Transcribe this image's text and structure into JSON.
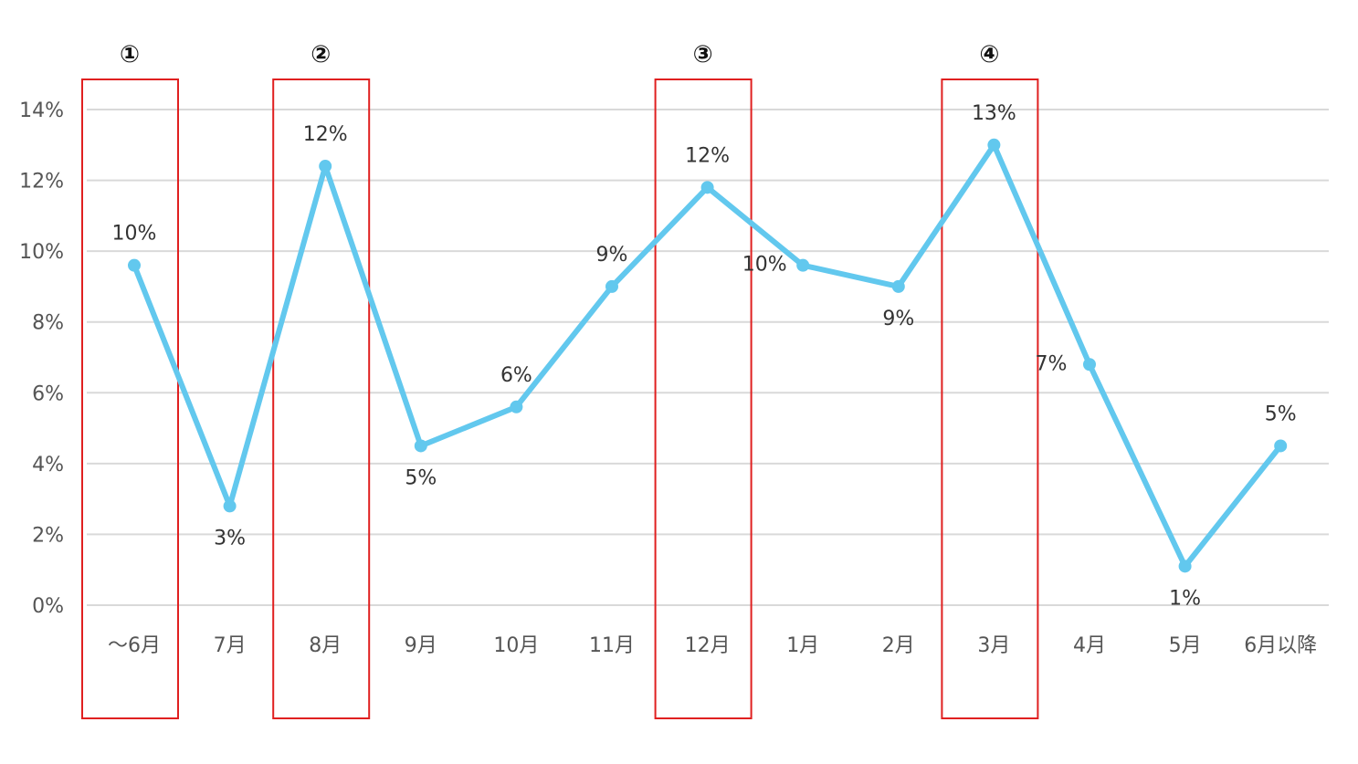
{
  "chart_data": {
    "type": "line",
    "categories": [
      "〜6月",
      "7月",
      "8月",
      "9月",
      "10月",
      "11月",
      "12月",
      "1月",
      "2月",
      "3月",
      "4月",
      "5月",
      "6月以降"
    ],
    "values": [
      9.6,
      2.8,
      12.4,
      4.5,
      5.6,
      9.0,
      11.8,
      9.6,
      9.0,
      13.0,
      6.8,
      1.1,
      4.5
    ],
    "data_labels": [
      "10%",
      "3%",
      "12%",
      "5%",
      "6%",
      "9%",
      "12%",
      "10%",
      "9%",
      "13%",
      "7%",
      "1%",
      "5%"
    ],
    "yticks": [
      "0%",
      "2%",
      "4%",
      "6%",
      "8%",
      "10%",
      "12%",
      "14%"
    ],
    "ylim": [
      0,
      14
    ],
    "grid": true,
    "line_color": "#62c8ee",
    "highlight_color": "#e02020",
    "highlights": [
      {
        "label": "①",
        "category_index": 0
      },
      {
        "label": "②",
        "category_index": 2
      },
      {
        "label": "③",
        "category_index": 6
      },
      {
        "label": "④",
        "category_index": 9
      }
    ]
  }
}
